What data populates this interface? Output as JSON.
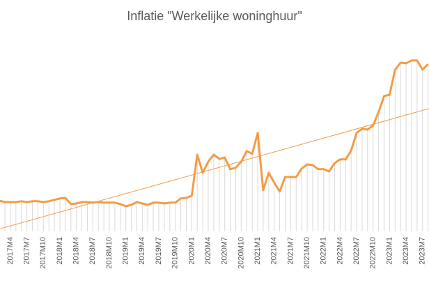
{
  "chart_data": {
    "type": "line",
    "title": "Inflatie \"Werkelijke woninghuur\"",
    "categories": [
      null,
      null,
      "2017M4",
      null,
      null,
      "2017M7",
      null,
      null,
      "2017M10",
      null,
      null,
      "2018M1",
      null,
      null,
      "2018M4",
      null,
      null,
      "2018M7",
      null,
      null,
      "2018M10",
      null,
      null,
      "2019M1",
      null,
      null,
      "2019M4",
      null,
      null,
      "2019M7",
      null,
      null,
      "2019M10",
      null,
      null,
      "2020M1",
      null,
      null,
      "2020M4",
      null,
      null,
      "2020M7",
      null,
      null,
      "2020M10",
      null,
      null,
      "2021M1",
      null,
      null,
      "2021M4",
      null,
      null,
      "2021M7",
      null,
      null,
      "2021M10",
      null,
      null,
      "2022M1",
      null,
      null,
      "2022M4",
      null,
      null,
      "2022M7",
      null,
      null,
      "2022M10",
      null,
      null,
      "2023M1",
      null,
      null,
      "2023M4",
      null,
      null,
      "2023M7",
      null
    ],
    "values": [
      2.1,
      2.05,
      2.05,
      2.05,
      2.08,
      2.05,
      2.08,
      2.08,
      2.05,
      2.08,
      2.13,
      2.18,
      2.2,
      1.98,
      2.0,
      2.05,
      2.05,
      2.03,
      2.05,
      2.03,
      2.03,
      2.03,
      1.98,
      1.9,
      1.95,
      2.05,
      2.0,
      1.95,
      2.03,
      2.03,
      2.0,
      2.03,
      2.03,
      2.18,
      2.2,
      2.28,
      3.75,
      3.1,
      3.5,
      3.75,
      3.6,
      3.65,
      3.23,
      3.28,
      3.5,
      3.88,
      3.78,
      4.53,
      2.48,
      3.1,
      2.75,
      2.43,
      2.95,
      2.95,
      2.95,
      3.25,
      3.4,
      3.38,
      3.23,
      3.23,
      3.15,
      3.45,
      3.58,
      3.58,
      3.9,
      4.53,
      4.68,
      4.65,
      4.8,
      5.28,
      5.85,
      5.9,
      6.8,
      7.05,
      7.03,
      7.13,
      7.13,
      6.8,
      7.0
    ],
    "color": "#f39c47",
    "ylim": [
      1,
      8
    ],
    "trendline": true,
    "drop_lines": true
  }
}
